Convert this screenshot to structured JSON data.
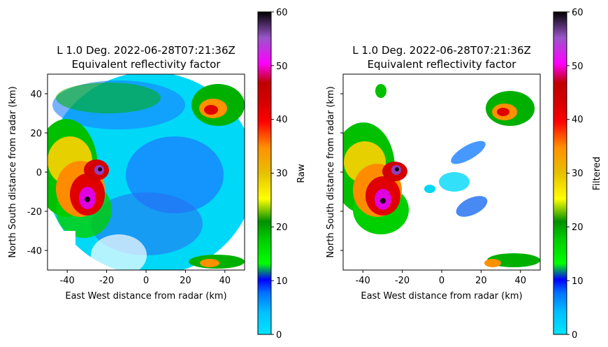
{
  "chart_data": [
    {
      "type": "heatmap",
      "title": "L 1.0 Deg. 2022-06-28T07:21:36Z",
      "subtitle": "Equivalent reflectivity factor",
      "xlabel": "East West distance from radar (km)",
      "ylabel": "North South distance from radar (km)",
      "xlim": [
        -50,
        50
      ],
      "ylim": [
        -50,
        50
      ],
      "xticks": [
        -40,
        -20,
        0,
        20,
        40
      ],
      "yticks": [
        -40,
        -20,
        0,
        20,
        40
      ],
      "colorbar": {
        "label": "Raw",
        "range": [
          0,
          60
        ],
        "ticks": [
          0,
          10,
          20,
          30,
          40,
          50,
          60
        ]
      },
      "features": [
        {
          "x": -30,
          "y": -5,
          "dbz": 55
        },
        {
          "x": -25,
          "y": 3,
          "dbz": 55
        },
        {
          "x": -40,
          "y": 10,
          "dbz": 35
        },
        {
          "x": 35,
          "y": 35,
          "dbz": 38
        },
        {
          "x": 30,
          "y": -45,
          "dbz": 30
        },
        {
          "x": 10,
          "y": 10,
          "dbz": 8
        }
      ],
      "masked": false
    },
    {
      "type": "heatmap",
      "title": "L 1.0 Deg. 2022-06-28T07:21:36Z",
      "subtitle": "Equivalent reflectivity factor",
      "xlabel": "East West distance from radar (km)",
      "ylabel": "North South distance from radar (km)",
      "xlim": [
        -50,
        50
      ],
      "ylim": [
        -50,
        50
      ],
      "xticks": [
        -40,
        -20,
        0,
        20,
        40
      ],
      "yticks": [
        -40,
        -20,
        0,
        20,
        40
      ],
      "colorbar": {
        "label": "Filtered",
        "range": [
          0,
          60
        ],
        "ticks": [
          0,
          10,
          20,
          30,
          40,
          50,
          60
        ]
      },
      "features": [
        {
          "x": -30,
          "y": -5,
          "dbz": 55
        },
        {
          "x": -25,
          "y": 3,
          "dbz": 55
        },
        {
          "x": -40,
          "y": 10,
          "dbz": 30
        },
        {
          "x": 35,
          "y": 30,
          "dbz": 38
        },
        {
          "x": 30,
          "y": -45,
          "dbz": 28
        },
        {
          "x": 15,
          "y": -15,
          "dbz": 10
        }
      ],
      "masked": true
    }
  ],
  "colorscale": [
    "#00e5ff",
    "#00bfff",
    "#0070ff",
    "#0000ff",
    "#00ff00",
    "#00c800",
    "#009000",
    "#ffff00",
    "#e7c000",
    "#ff9000",
    "#ff0000",
    "#d60000",
    "#c00000",
    "#ff00ff",
    "#9955c9",
    "#000000"
  ]
}
